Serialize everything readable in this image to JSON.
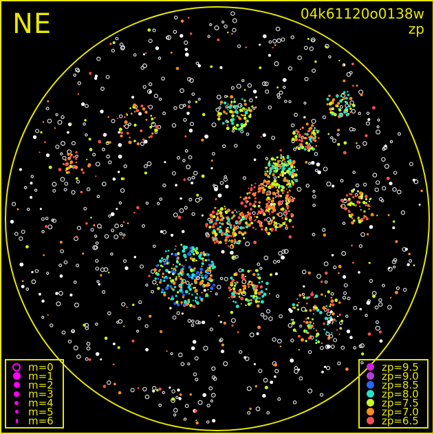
{
  "chart_data": {
    "type": "scatter",
    "title": "04k61120o0138w",
    "subtitle": "zp",
    "corner_label": "NE",
    "grid": false,
    "frame_color": "#e8e800",
    "uncalibrated_star_color": "#ffffff",
    "size_legend": {
      "position": "bottom-left",
      "entries": [
        {
          "label": "m=0",
          "hollow": true
        },
        {
          "label": "m=1"
        },
        {
          "label": "m=2"
        },
        {
          "label": "m=3"
        },
        {
          "label": "m=4"
        },
        {
          "label": "m=5"
        },
        {
          "label": "m=6"
        }
      ]
    },
    "color_legend": {
      "position": "bottom-right",
      "entries": [
        {
          "label": "zp=9.5",
          "zp": 9.5,
          "color": "#d21ee6"
        },
        {
          "label": "zp=9.0",
          "zp": 9.0,
          "color": "#b43cdc"
        },
        {
          "label": "zp=8.5",
          "zp": 8.5,
          "color": "#2864ff"
        },
        {
          "label": "zp=8.0",
          "zp": 8.0,
          "color": "#1ee6c8"
        },
        {
          "label": "zp=7.5",
          "zp": 7.5,
          "color": "#c8ff1e"
        },
        {
          "label": "zp=7.0",
          "zp": 7.0,
          "color": "#ff8c1e"
        },
        {
          "label": "zp=6.5",
          "zp": 6.5,
          "color": "#ff5050"
        }
      ]
    }
  }
}
